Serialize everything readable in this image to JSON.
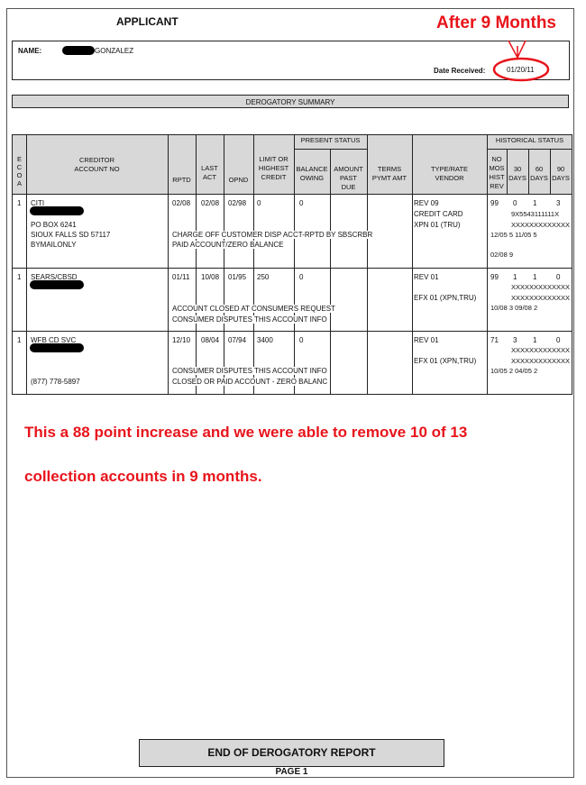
{
  "header": {
    "title": "APPLICANT",
    "annotation": "After 9 Months",
    "name_label": "NAME:",
    "name_value": "GONZALEZ",
    "date_label": "Date Received:",
    "date_value": "01/20/11"
  },
  "section_title": "DEROGATORY SUMMARY",
  "columns": {
    "ecoa": [
      "E",
      "C",
      "O",
      "A"
    ],
    "creditor": [
      "CREDITOR",
      "ACCOUNT NO"
    ],
    "rptd": "RPTD",
    "last_act": [
      "LAST",
      "ACT"
    ],
    "opnd": "OPND",
    "limit": [
      "LIMIT OR",
      "HIGHEST",
      "CREDIT"
    ],
    "present_status": "PRESENT STATUS",
    "balance": [
      "BALANCE",
      "OWING"
    ],
    "past_due": [
      "AMOUNT",
      "PAST",
      "DUE"
    ],
    "terms": [
      "TERMS",
      "PYMT AMT"
    ],
    "type": [
      "TYPE/RATE",
      "VENDOR"
    ],
    "historical_status": "HISTORICAL STATUS",
    "no_mos": [
      "NO",
      "MOS",
      "HIST",
      "REV"
    ],
    "d30": [
      "30",
      "DAYS"
    ],
    "d60": [
      "60",
      "DAYS"
    ],
    "d90": [
      "90",
      "DAYS"
    ]
  },
  "accounts": [
    {
      "ecoa": "1",
      "creditor": [
        "CITI",
        "PO BOX 6241",
        "SIOUX FALLS SD  57117",
        "BYMAILONLY"
      ],
      "rptd": "02/08",
      "last_act": "02/08",
      "opnd": "02/98",
      "limit": "0",
      "balance": "0",
      "remarks": [
        "CHARGE OFF CUSTOMER DISP ACCT-RPTD BY SBSCRBR",
        "PAID ACCOUNT/ZERO BALANCE"
      ],
      "type": [
        "REV 09",
        "CREDIT CARD",
        "XPN 01 (TRU)"
      ],
      "hist": [
        "99",
        "0",
        "1",
        "3"
      ],
      "hist_lines": [
        "9X5543111111X",
        "XXXXXXXXXXXXX",
        "12/05 5 11/05 5",
        "02/08 9"
      ]
    },
    {
      "ecoa": "1",
      "creditor": [
        "SEARS/CBSD"
      ],
      "rptd": "01/11",
      "last_act": "10/08",
      "opnd": "01/95",
      "limit": "250",
      "balance": "0",
      "remarks": [
        "ACCOUNT CLOSED AT CONSUMERS REQUEST",
        "CONSUMER DISPUTES THIS ACCOUNT INFO"
      ],
      "type": [
        "REV 01",
        "EFX 01 (XPN,TRU)"
      ],
      "hist": [
        "99",
        "1",
        "1",
        "0"
      ],
      "hist_lines": [
        "XXXXXXXXXXXXX",
        "XXXXXXXXXXXXX",
        "10/08 3 09/08 2"
      ]
    },
    {
      "ecoa": "1",
      "creditor": [
        "WFB CD SVC",
        "(877) 778-5897"
      ],
      "rptd": "12/10",
      "last_act": "08/04",
      "opnd": "07/94",
      "limit": "3400",
      "balance": "0",
      "remarks": [
        "CONSUMER DISPUTES THIS ACCOUNT INFO",
        "CLOSED OR PAID ACCOUNT - ZERO BALANC"
      ],
      "type": [
        "REV 01",
        "EFX 01 (XPN,TRU)"
      ],
      "hist": [
        "71",
        "3",
        "1",
        "0"
      ],
      "hist_lines": [
        "XXXXXXXXXXXXX",
        "XXXXXXXXXXXXX",
        "10/05 2 04/05 2"
      ]
    }
  ],
  "note": [
    "This a 88 point increase and we were able to remove 10 of 13",
    "collection accounts in 9 months."
  ],
  "footer": {
    "end_label": "END OF DEROGATORY REPORT",
    "page": "PAGE 1"
  },
  "colors": {
    "annotation": "#e8141b",
    "header_fill": "#d8d8d8"
  }
}
